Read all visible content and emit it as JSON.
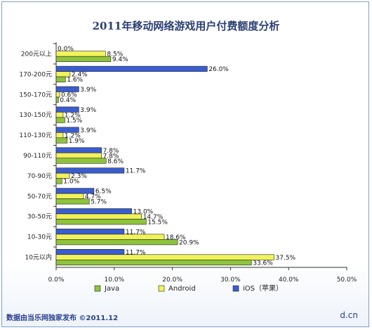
{
  "title": "2011年移动网络游戏用户付费额度分析",
  "footer": {
    "source": "数据由当乐网独家发布  ©2011.12",
    "brand": "d.cn"
  },
  "chart_data": {
    "type": "bar",
    "orientation": "horizontal",
    "title": "2011年移动网络游戏用户付费额度分析",
    "categories": [
      "200元以上",
      "170-200元",
      "150-170元",
      "130-150元",
      "110-130元",
      "90-110元",
      "70-90元",
      "50-70元",
      "30-50元",
      "10-30元",
      "10元以内"
    ],
    "series": [
      {
        "name": "iOS（苹果）",
        "color": "#3a5dd0",
        "values": [
          0.0,
          26.0,
          3.9,
          3.9,
          3.9,
          7.8,
          11.7,
          6.5,
          13.0,
          11.7,
          11.7
        ],
        "labels": [
          "0.0%",
          "26.0%",
          "3.9%",
          "3.9%",
          "3.9%",
          "7.8%",
          "11.7%",
          "6.5%",
          "13.0%",
          "11.7%",
          "11.7%"
        ]
      },
      {
        "name": "Android",
        "color": "#f2f25a",
        "values": [
          8.5,
          2.4,
          0.6,
          1.2,
          1.2,
          7.8,
          2.3,
          4.7,
          14.7,
          18.6,
          37.5
        ],
        "labels": [
          "8.5%",
          "2.4%",
          "0.6%",
          "1.2%",
          "1.2%",
          "7.8%",
          "2.3%",
          "4.7%",
          "14.7%",
          "18.6%",
          "37.5%"
        ]
      },
      {
        "name": "Java",
        "color": "#8ec43c",
        "values": [
          9.4,
          1.6,
          0.4,
          1.5,
          1.9,
          8.6,
          1.0,
          5.7,
          15.5,
          20.9,
          33.6
        ],
        "labels": [
          "9.4%",
          "1.6%",
          "0.4%",
          "1.5%",
          "1.9%",
          "8.6%",
          "1.0%",
          "5.7%",
          "15.5%",
          "20.9%",
          "33.6%"
        ]
      }
    ],
    "xlim": [
      0,
      50
    ],
    "xticks": [
      "0.0%",
      "10.0%",
      "20.0%",
      "30.0%",
      "40.0%",
      "50.0%"
    ],
    "legend": [
      "Java",
      "Android",
      "iOS（苹果）"
    ],
    "legend_position": "bottom",
    "grid": false
  }
}
